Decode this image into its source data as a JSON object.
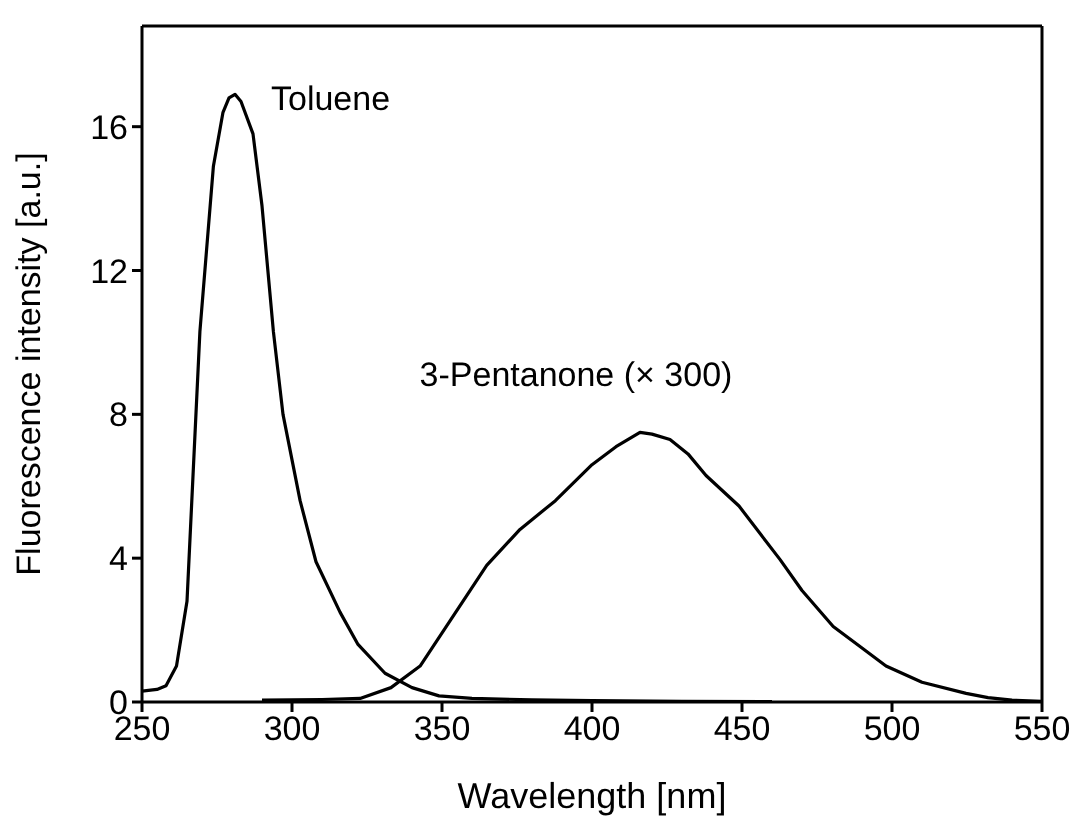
{
  "chart_data": {
    "type": "line",
    "xlabel": "Wavelength [nm]",
    "ylabel": "Fluorescence intensity [a.u.]",
    "xlim": [
      250,
      550
    ],
    "xticks": [
      250,
      300,
      350,
      400,
      450,
      500,
      550
    ],
    "ylim": [
      0,
      18.8
    ],
    "yticks": [
      0,
      4,
      8,
      12,
      16
    ],
    "grid": false,
    "marker": "none",
    "line_style": "solid",
    "series": [
      {
        "name": "Toluene",
        "color": "#000000",
        "x": [
          250,
          255,
          258,
          261.5,
          265,
          269.3,
          273.8,
          277,
          279,
          281,
          283,
          287,
          290,
          293.8,
          297,
          302.7,
          308,
          316,
          322,
          331,
          340,
          349,
          360,
          380,
          400,
          430,
          460
        ],
        "values": [
          0.3,
          0.35,
          0.45,
          1.0,
          2.8,
          10.3,
          14.9,
          16.4,
          16.8,
          16.9,
          16.7,
          15.8,
          13.8,
          10.3,
          8.0,
          5.6,
          3.9,
          2.5,
          1.6,
          0.8,
          0.4,
          0.17,
          0.1,
          0.06,
          0.04,
          0.02,
          0.01
        ]
      },
      {
        "name": "3-Pentanone (× 300)",
        "color": "#000000",
        "x": [
          290,
          300,
          310,
          322.7,
          333,
          342.7,
          353,
          364.9,
          376,
          387.8,
          400,
          408,
          416,
          420,
          426,
          432,
          438,
          449,
          462.7,
          470,
          480.4,
          490,
          498,
          510,
          524.7,
          532,
          540,
          550
        ],
        "values": [
          0.05,
          0.06,
          0.07,
          0.1,
          0.4,
          1.0,
          2.3,
          3.8,
          4.8,
          5.6,
          6.6,
          7.1,
          7.5,
          7.45,
          7.3,
          6.9,
          6.3,
          5.45,
          3.96,
          3.1,
          2.1,
          1.5,
          1.0,
          0.55,
          0.24,
          0.12,
          0.05,
          0.02
        ]
      }
    ]
  }
}
